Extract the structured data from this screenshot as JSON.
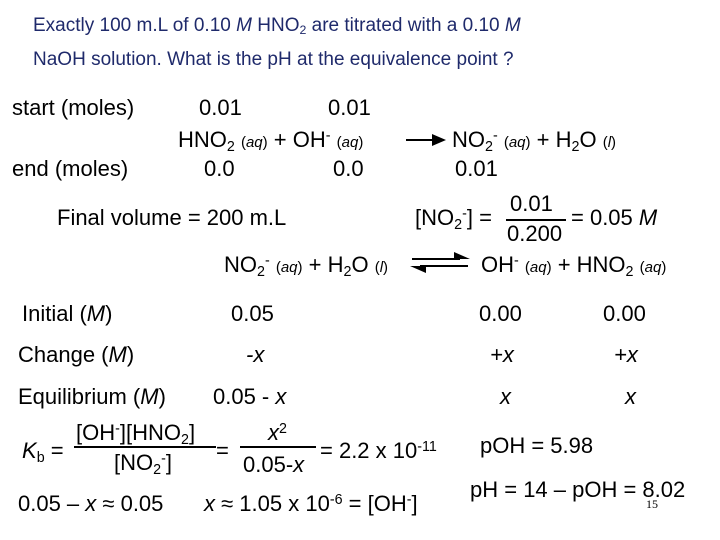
{
  "title": {
    "line1_a": "Exactly 100 m.L of 0.10 ",
    "line1_M1": "M",
    "line1_b": " HNO",
    "line1_sub": "2",
    "line1_c": " are titrated with a 0.10 ",
    "line1_M2": "M",
    "line2": "NaOH solution.  What is the pH at the equivalence point ?"
  },
  "reaction1": {
    "start_label": "start (moles)",
    "end_label": "end (moles)",
    "start_hno2": "0.01",
    "start_oh": "0.01",
    "end_hno2": "0.0",
    "end_oh": "0.0",
    "end_no2": "0.01"
  },
  "final_volume": "Final volume = 200 m.L",
  "no2_conc": {
    "numerator": "0.01",
    "denominator": "0.200",
    "result": "= 0.05 ",
    "unit": "M"
  },
  "ice": {
    "initial_label": "Initial (",
    "change_label": "Change (",
    "equilibrium_label": "Equilibrium (",
    "m": "M",
    "close": ")",
    "initial": [
      "0.05",
      "0.00",
      "0.00"
    ],
    "change": [
      "-x",
      "+x",
      "+x"
    ],
    "equilibrium_a": "0.05 - ",
    "x": "x"
  },
  "kb": {
    "k": "K",
    "b": "b",
    "eq": " =",
    "rhs_num": "2",
    "rhs_den": "0.05-",
    "value": "= 2.2 x 10",
    "exp": "-11"
  },
  "approx": {
    "left_a": "0.05 – ",
    "left_b": " ≈ 0.05",
    "right_b": " ≈ 1.05 x 10",
    "right_exp": "-6",
    "right_c": " = [OH",
    "right_d": "]"
  },
  "poh": "pOH = 5.98",
  "ph": "pH = 14 – pOH = 8.02",
  "page_number": "15"
}
